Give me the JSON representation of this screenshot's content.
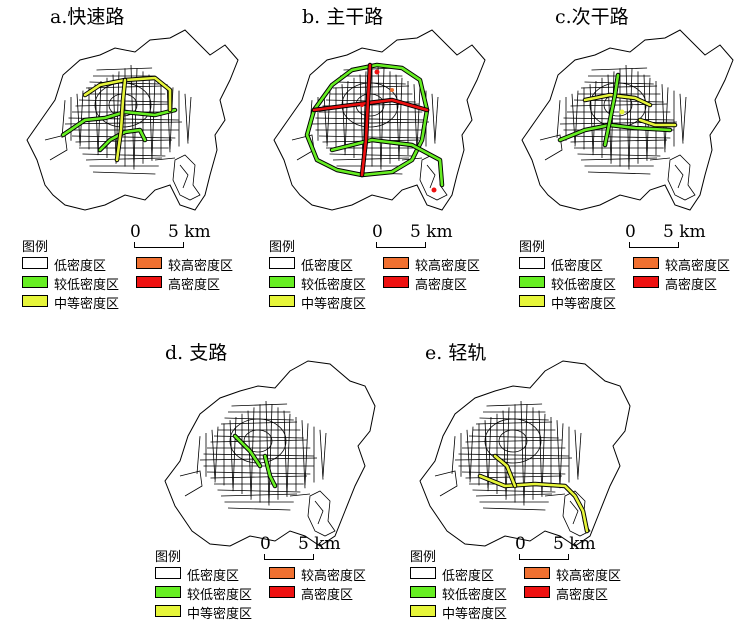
{
  "colors": {
    "low": "#ffffff",
    "low_mid": "#66ee22",
    "mid": "#e6f53a",
    "high_mid": "#f07030",
    "high": "#ee1111",
    "road": "#000000"
  },
  "scale": {
    "zero": "0",
    "five": "5 km"
  },
  "legend": {
    "title": "图例",
    "items": [
      {
        "label": "低密度区",
        "color_key": "low"
      },
      {
        "label": "较低密度区",
        "color_key": "low_mid"
      },
      {
        "label": "中等密度区",
        "color_key": "mid"
      },
      {
        "label": "较高密度区",
        "color_key": "high_mid"
      },
      {
        "label": "高密度区",
        "color_key": "high"
      }
    ]
  },
  "panels": [
    {
      "id": "a",
      "title": "a.快速路",
      "highlight": [
        "low_mid",
        "mid"
      ]
    },
    {
      "id": "b",
      "title": "b. 主干路",
      "highlight": [
        "low_mid",
        "high"
      ]
    },
    {
      "id": "c",
      "title": "c.次干路",
      "highlight": [
        "low_mid",
        "mid"
      ]
    },
    {
      "id": "d",
      "title": "d. 支路",
      "highlight": [
        "low_mid"
      ]
    },
    {
      "id": "e",
      "title": "e. 轻轨",
      "highlight": [
        "mid"
      ]
    }
  ]
}
